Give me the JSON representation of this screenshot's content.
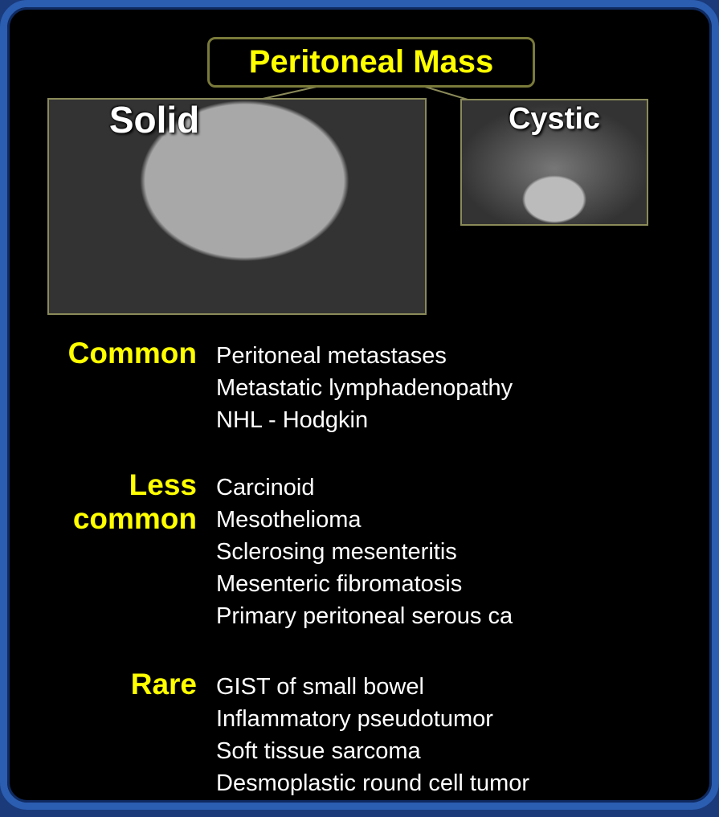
{
  "title": "Peritoneal Mass",
  "images": [
    {
      "label": "Solid"
    },
    {
      "label": "Cystic"
    }
  ],
  "groups": [
    {
      "label": "Common",
      "items": [
        "Peritoneal metastases",
        "Metastatic lymphadenopathy",
        "NHL - Hodgkin"
      ]
    },
    {
      "label": "Less common",
      "items": [
        "Carcinoid",
        "Mesothelioma",
        "Sclerosing mesenteritis",
        "Mesenteric fibromatosis",
        "Primary peritoneal serous ca"
      ]
    },
    {
      "label": "Rare",
      "items": [
        "GIST of small bowel",
        "Inflammatory pseudotumor",
        "Soft tissue sarcoma",
        "Desmoplastic round cell tumor"
      ]
    }
  ]
}
